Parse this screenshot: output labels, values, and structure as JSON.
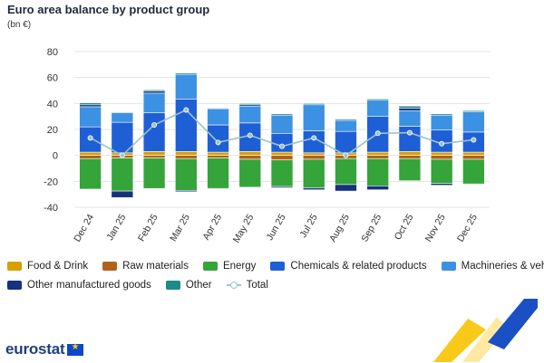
{
  "header": {
    "title": "Euro area balance by product group",
    "unit": "(bn €)"
  },
  "logo": {
    "text": "eurostat"
  },
  "legend": {
    "row1": [
      {
        "label": "Food & Drink",
        "color": "#d6a100",
        "kind": "box"
      },
      {
        "label": "Raw materials",
        "color": "#b0621d",
        "kind": "box"
      },
      {
        "label": "Energy",
        "color": "#35a43a",
        "kind": "box"
      },
      {
        "label": "Chemicals & related products",
        "color": "#1e5fd6",
        "kind": "box"
      },
      {
        "label": "Machineries & vehicles",
        "color": "#3d91e3",
        "kind": "box"
      }
    ],
    "row2": [
      {
        "label": "Other manufactured goods",
        "color": "#15327f",
        "kind": "box"
      },
      {
        "label": "Other",
        "color": "#1f8a87",
        "kind": "box"
      },
      {
        "label": "Total",
        "color": "#9cc3c9",
        "kind": "line"
      }
    ]
  },
  "chart_data": {
    "type": "bar",
    "stacked": true,
    "categories": [
      "Dec 24",
      "Jan 25",
      "Feb 25",
      "Mar 25",
      "Apr 25",
      "May 25",
      "Jun 25",
      "Jul 25",
      "Aug 25",
      "Sep 25",
      "Oct 25",
      "Nov 25",
      "Dec 25"
    ],
    "ylim": [
      -40,
      80
    ],
    "yticks": [
      -40,
      -20,
      0,
      20,
      40,
      60,
      80
    ],
    "grid": true,
    "legend_position": "bottom",
    "series": [
      {
        "name": "Food & Drink",
        "color": "#d6a100",
        "values": [
          2.5,
          2,
          3,
          3,
          2.5,
          3,
          2.5,
          2,
          2,
          2.5,
          3,
          2.5,
          2.5
        ]
      },
      {
        "name": "Raw materials",
        "color": "#b0621d",
        "values": [
          -2.5,
          -2,
          -2,
          -2.5,
          -2,
          -3,
          -3.5,
          -3,
          -2.5,
          -2.5,
          -2.5,
          -3,
          -3
        ]
      },
      {
        "name": "Energy",
        "color": "#35a43a",
        "values": [
          -23.5,
          -25.5,
          -23.5,
          -24.5,
          -23.5,
          -21.5,
          -20.5,
          -22,
          -20,
          -21,
          -17,
          -18.5,
          -19
        ]
      },
      {
        "name": "Chemicals & related products",
        "color": "#1e5fd6",
        "values": [
          19.5,
          23.5,
          30,
          40.5,
          21,
          22,
          14.5,
          17,
          16.5,
          27.5,
          19.5,
          17,
          15.5
        ]
      },
      {
        "name": "Machineries & vehicles",
        "color": "#3d91e3",
        "values": [
          15.5,
          7.5,
          15,
          19,
          12.5,
          13,
          14,
          20,
          8.5,
          12.5,
          12,
          11.5,
          15.5
        ]
      },
      {
        "name": "Other manufactured goods",
        "color": "#15327f",
        "values": [
          1.5,
          -5,
          1.5,
          -1,
          -0.5,
          1,
          -1,
          -1.5,
          -5,
          -3,
          2,
          -1.5,
          -0.5
        ]
      },
      {
        "name": "Other",
        "color": "#1f8a87",
        "values": [
          1.5,
          0.5,
          1,
          1,
          0.5,
          1,
          1,
          1,
          1,
          1,
          1.5,
          1,
          1
        ]
      }
    ],
    "total": {
      "name": "Total",
      "color": "#9cc3c9",
      "values": [
        13.5,
        0,
        23.5,
        35,
        10,
        15.5,
        7,
        13.5,
        0,
        17,
        17.5,
        9,
        12
      ]
    }
  }
}
